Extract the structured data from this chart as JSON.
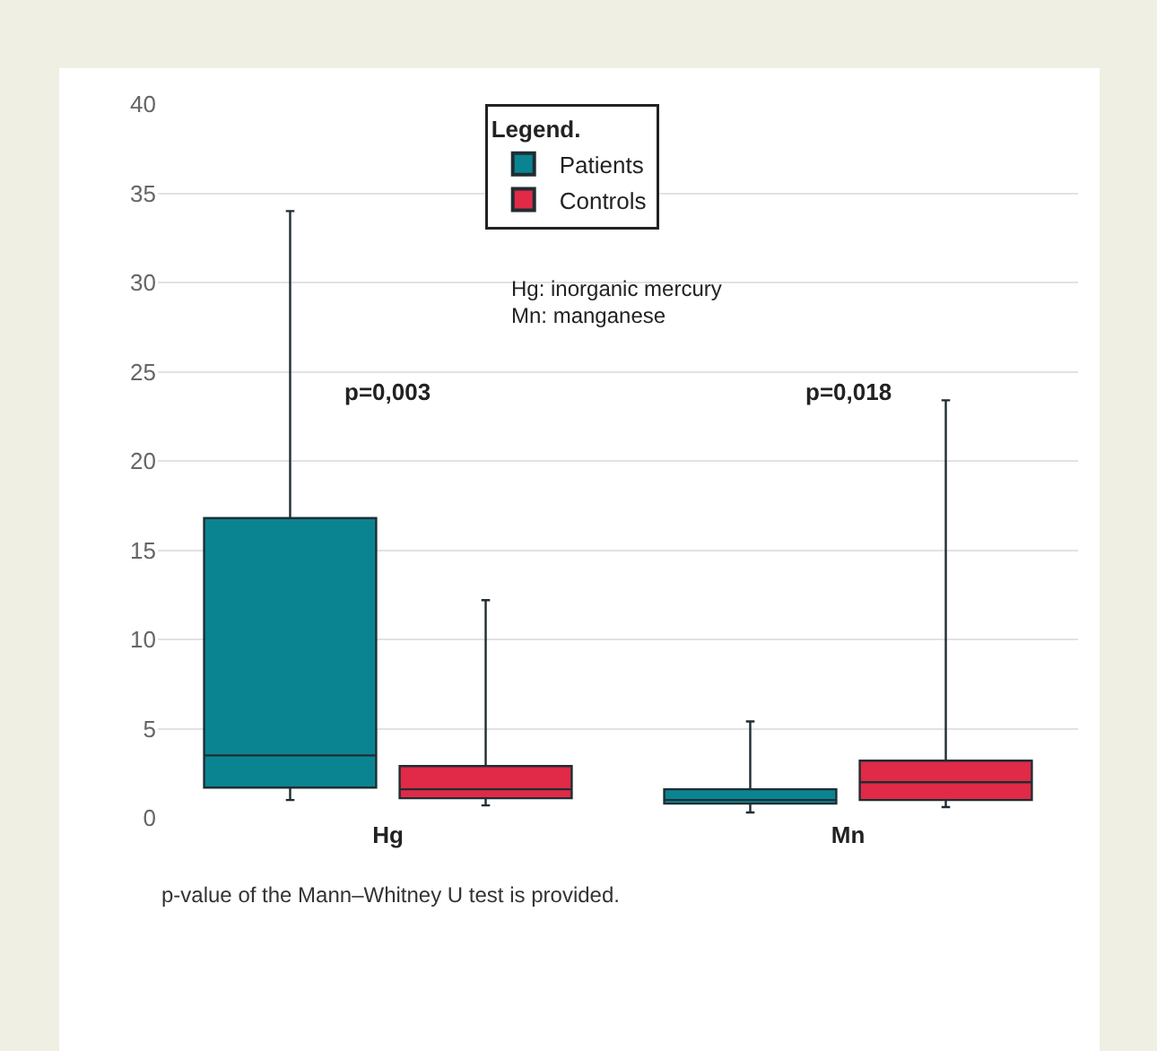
{
  "chart_data": {
    "type": "box",
    "categories": [
      "Hg",
      "Mn"
    ],
    "legend_title": "Legend.",
    "series": [
      {
        "name": "Patients",
        "color": "#0b8492",
        "boxes": [
          {
            "low": 1.0,
            "q1": 1.7,
            "median": 3.5,
            "q3": 16.8,
            "high": 34.0
          },
          {
            "low": 0.3,
            "q1": 0.8,
            "median": 1.0,
            "q3": 1.6,
            "high": 5.4
          }
        ]
      },
      {
        "name": "Controls",
        "color": "#e02a47",
        "boxes": [
          {
            "low": 0.7,
            "q1": 1.1,
            "median": 1.6,
            "q3": 2.9,
            "high": 12.2
          },
          {
            "low": 0.6,
            "q1": 1.0,
            "median": 2.0,
            "q3": 3.2,
            "high": 23.4
          }
        ]
      }
    ],
    "ylim": [
      0,
      40
    ],
    "yticks": [
      0,
      5,
      10,
      15,
      20,
      25,
      30,
      35,
      40
    ],
    "grid": "y",
    "legend": "top",
    "annotations": [
      "p=0,003",
      "p=0,018",
      "Hg: inorganic mercury",
      "Mn: manganese",
      "p-value of the Mann–Whitney U test is provided."
    ]
  }
}
